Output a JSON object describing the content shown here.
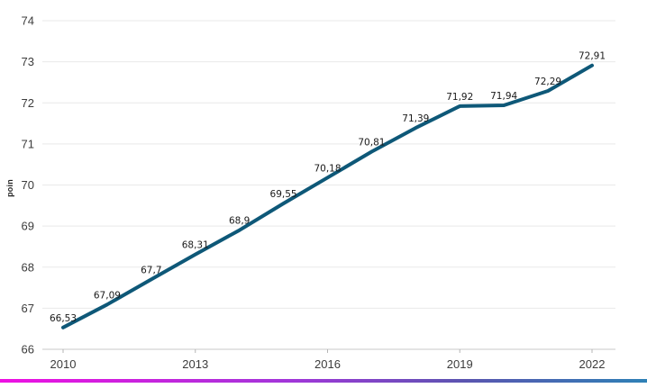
{
  "chart_data": {
    "type": "line",
    "title": "",
    "xlabel": "",
    "ylabel": "poin",
    "x": [
      2010,
      2011,
      2012,
      2013,
      2014,
      2015,
      2016,
      2017,
      2018,
      2019,
      2020,
      2021,
      2022
    ],
    "values": [
      66.53,
      67.09,
      67.7,
      68.31,
      68.9,
      69.55,
      70.18,
      70.81,
      71.39,
      71.92,
      71.94,
      72.29,
      72.91
    ],
    "point_labels": [
      "66,53",
      "67,09",
      "67,7",
      "68,31",
      "68,9",
      "69,55",
      "70,18",
      "70,81",
      "71,39",
      "71,92",
      "71,94",
      "72,29",
      "72,91"
    ],
    "y_ticks": [
      66,
      67,
      68,
      69,
      70,
      71,
      72,
      73,
      74
    ],
    "y_tick_labels": [
      "66",
      "67",
      "68",
      "69",
      "70",
      "71",
      "72",
      "73",
      "74"
    ],
    "x_ticks": [
      2010,
      2013,
      2016,
      2019,
      2022
    ],
    "x_tick_labels": [
      "2010",
      "2013",
      "2016",
      "2019",
      "2022"
    ],
    "ylim": [
      66,
      74
    ],
    "xlim": [
      2010,
      2022
    ],
    "grid": "horizontal",
    "legend": "none",
    "colors": {
      "line": "#0e5878",
      "data_label": "#1a1a1a",
      "axis_text": "#3c3c3c",
      "gridline": "#e9e9e9",
      "axis_line": "#c9c9c9",
      "tick_mark": "#b5b5b5",
      "background": "#ffffff",
      "bottom_bar_gradient": [
        "#ee10e2",
        "#a136d9",
        "#5a55b0",
        "#2e81b6"
      ]
    }
  }
}
